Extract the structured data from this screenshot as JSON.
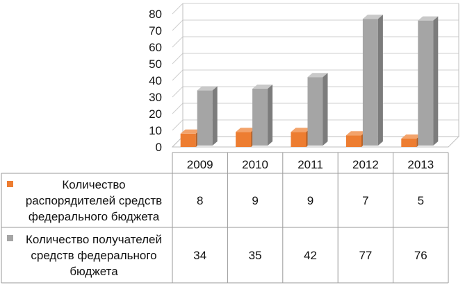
{
  "chart_data": {
    "type": "bar",
    "categories": [
      "2009",
      "2010",
      "2011",
      "2012",
      "2013"
    ],
    "y_ticks": [
      "0",
      "10",
      "20",
      "30",
      "40",
      "50",
      "60",
      "70",
      "80"
    ],
    "ylim": [
      0,
      80
    ],
    "grid": true,
    "legend": "table",
    "series": [
      {
        "name": "Количество распорядителей средств федерального бюджета",
        "name_lines": [
          "Количество",
          "распорядителей средств",
          "федерального бюджета"
        ],
        "values": [
          8,
          9,
          9,
          7,
          5
        ],
        "value_labels": [
          "8",
          "9",
          "9",
          "7",
          "5"
        ],
        "color": "#ED7D31",
        "color_side": "#B85F22",
        "color_top": "#F3A36B"
      },
      {
        "name": "Количество получателей средств федерального бюджета",
        "name_lines": [
          "Количество получателей",
          "средств федерального",
          "бюджета"
        ],
        "values": [
          34,
          35,
          42,
          77,
          76
        ],
        "value_labels": [
          "34",
          "35",
          "42",
          "77",
          "76"
        ],
        "color": "#A5A5A5",
        "color_side": "#7C7C7C",
        "color_top": "#C9C9C9"
      }
    ]
  }
}
